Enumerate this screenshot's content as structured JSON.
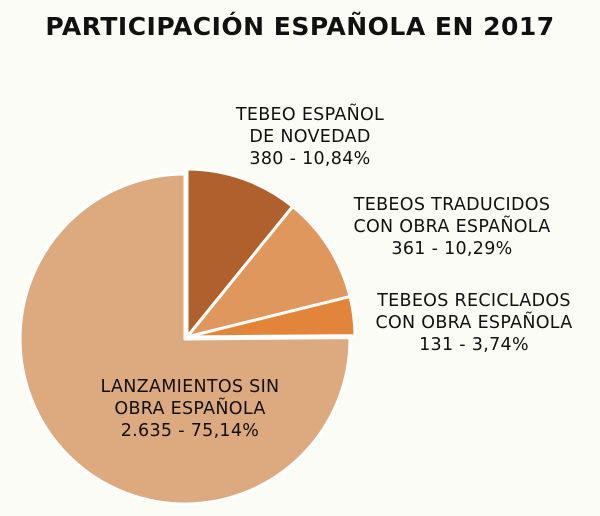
{
  "chart_data": {
    "type": "pie",
    "title": "PARTICIPACIÓN ESPAÑOLA EN 2017",
    "slices": [
      {
        "lines": [
          "TEBEO ESPAÑOL",
          "DE NOVEDAD"
        ],
        "value": 380,
        "value_label": "380",
        "percent_label": "10,84%",
        "percent": 10.84,
        "color": "#b0602c"
      },
      {
        "lines": [
          "TEBEOS TRADUCIDOS",
          "CON OBRA ESPAÑOLA"
        ],
        "value": 361,
        "value_label": "361",
        "percent_label": "10,29%",
        "percent": 10.29,
        "color": "#e0975e"
      },
      {
        "lines": [
          "TEBEOS RECICLADOS",
          "CON OBRA ESPAÑOLA"
        ],
        "value": 131,
        "value_label": "131",
        "percent_label": "3,74%",
        "percent": 3.74,
        "color": "#e2853a"
      },
      {
        "lines": [
          "LANZAMIENTOS SIN",
          "OBRA ESPAÑOLA"
        ],
        "value": 2635,
        "value_label": "2.635",
        "percent_label": "75,14%",
        "percent": 75.14,
        "color": "#ddaa80"
      }
    ],
    "start_angle_deg": 0,
    "direction": "clockwise",
    "exploded_slices": [
      0,
      1,
      2
    ],
    "legend": "none"
  }
}
